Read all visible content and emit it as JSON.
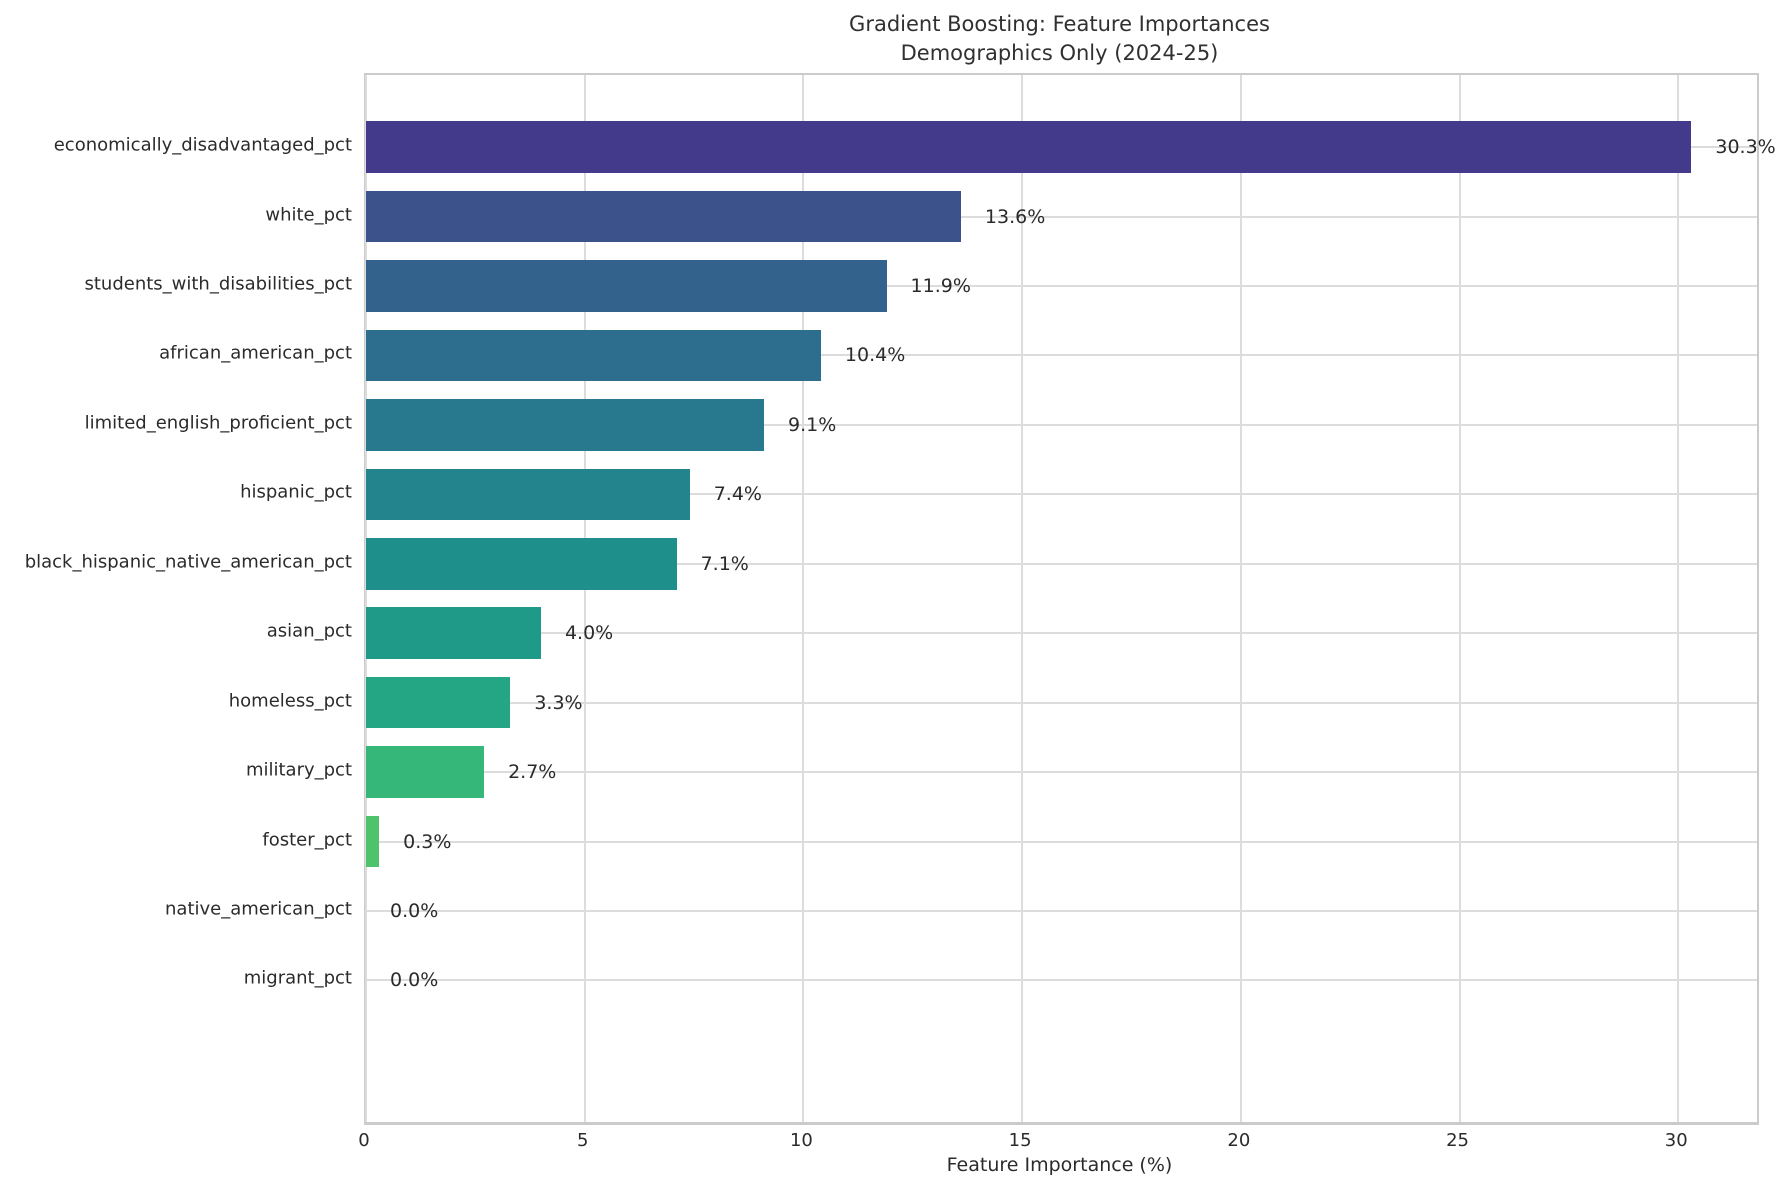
{
  "chart_data": {
    "type": "bar",
    "orientation": "horizontal",
    "title": "Gradient Boosting: Feature Importances",
    "subtitle": "Demographics Only (2024-25)",
    "xlabel": "Feature Importance (%)",
    "categories": [
      "economically_disadvantaged_pct",
      "white_pct",
      "students_with_disabilities_pct",
      "african_american_pct",
      "limited_english_proficient_pct",
      "hispanic_pct",
      "black_hispanic_native_american_pct",
      "asian_pct",
      "homeless_pct",
      "military_pct",
      "foster_pct",
      "native_american_pct",
      "migrant_pct"
    ],
    "values": [
      30.3,
      13.6,
      11.9,
      10.4,
      9.1,
      7.4,
      7.1,
      4.0,
      3.3,
      2.7,
      0.3,
      0.0,
      0.0
    ],
    "value_labels": [
      "30.3%",
      "13.6%",
      "11.9%",
      "10.4%",
      "9.1%",
      "7.4%",
      "7.1%",
      "4.0%",
      "3.3%",
      "2.7%",
      "0.3%",
      "0.0%",
      "0.0%"
    ],
    "bar_colors": [
      "#443A8C",
      "#3B528B",
      "#33638D",
      "#2D6E8E",
      "#28798E",
      "#23848D",
      "#1F8F8B",
      "#1F9A88",
      "#24A583",
      "#35B779",
      "#4EC36B",
      "#69CC5C",
      "#85D549"
    ],
    "x_ticks": [
      0,
      5,
      10,
      15,
      20,
      25,
      30
    ],
    "xlim": [
      0,
      31.8
    ],
    "grid": true,
    "legend": null,
    "grid_color": "#dcdcdc",
    "spine_color": "#cbcbcb"
  }
}
